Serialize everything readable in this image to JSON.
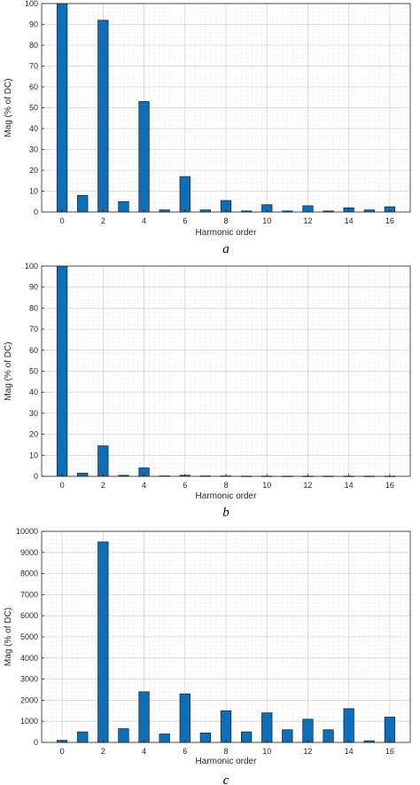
{
  "chart_data": [
    {
      "type": "bar",
      "panel_label": "a",
      "xlabel": "Harmonic order",
      "ylabel": "Mag (% of DC)",
      "categories": [
        0,
        1,
        2,
        3,
        4,
        5,
        6,
        7,
        8,
        9,
        10,
        11,
        12,
        13,
        14,
        15,
        16
      ],
      "values": [
        100,
        8,
        92,
        5,
        53,
        1,
        17,
        1,
        5.5,
        0.5,
        3.5,
        0.5,
        3,
        0.5,
        2,
        1,
        2.5
      ],
      "xticks": [
        0,
        2,
        4,
        6,
        8,
        10,
        12,
        14,
        16
      ],
      "yticks": [
        0,
        10,
        20,
        30,
        40,
        50,
        60,
        70,
        80,
        90,
        100
      ],
      "ylim": [
        0,
        100
      ],
      "grid": "on"
    },
    {
      "type": "bar",
      "panel_label": "b",
      "xlabel": "Harmonic order",
      "ylabel": "Mag (% of DC)",
      "categories": [
        0,
        1,
        2,
        3,
        4,
        5,
        6,
        7,
        8,
        9,
        10,
        11,
        12,
        13,
        14,
        15,
        16
      ],
      "values": [
        100,
        1.5,
        14.5,
        0.5,
        4,
        0.2,
        0.5,
        0.2,
        0.2,
        0.1,
        0.1,
        0.1,
        0.1,
        0.1,
        0.1,
        0.1,
        0.1
      ],
      "xticks": [
        0,
        2,
        4,
        6,
        8,
        10,
        12,
        14,
        16
      ],
      "yticks": [
        0,
        10,
        20,
        30,
        40,
        50,
        60,
        70,
        80,
        90,
        100
      ],
      "ylim": [
        0,
        100
      ],
      "grid": "on"
    },
    {
      "type": "bar",
      "panel_label": "c",
      "xlabel": "Harmonic order",
      "ylabel": "Mag (% of DC)",
      "categories": [
        0,
        1,
        2,
        3,
        4,
        5,
        6,
        7,
        8,
        9,
        10,
        11,
        12,
        13,
        14,
        15,
        16
      ],
      "values": [
        100,
        500,
        9500,
        650,
        2400,
        400,
        2300,
        450,
        1500,
        500,
        1400,
        600,
        1100,
        600,
        1600,
        80,
        1200
      ],
      "xticks": [
        0,
        2,
        4,
        6,
        8,
        10,
        12,
        14,
        16
      ],
      "yticks": [
        0,
        1000,
        2000,
        3000,
        4000,
        5000,
        6000,
        7000,
        8000,
        9000,
        10000
      ],
      "ylim": [
        0,
        10000
      ],
      "grid": "on"
    }
  ],
  "colors": {
    "bar_fill": "#0e6eb8",
    "bar_edge": "#0b2236",
    "grid_major": "#d4d4d4",
    "grid_minor": "#ededed",
    "axis": "#262626"
  }
}
